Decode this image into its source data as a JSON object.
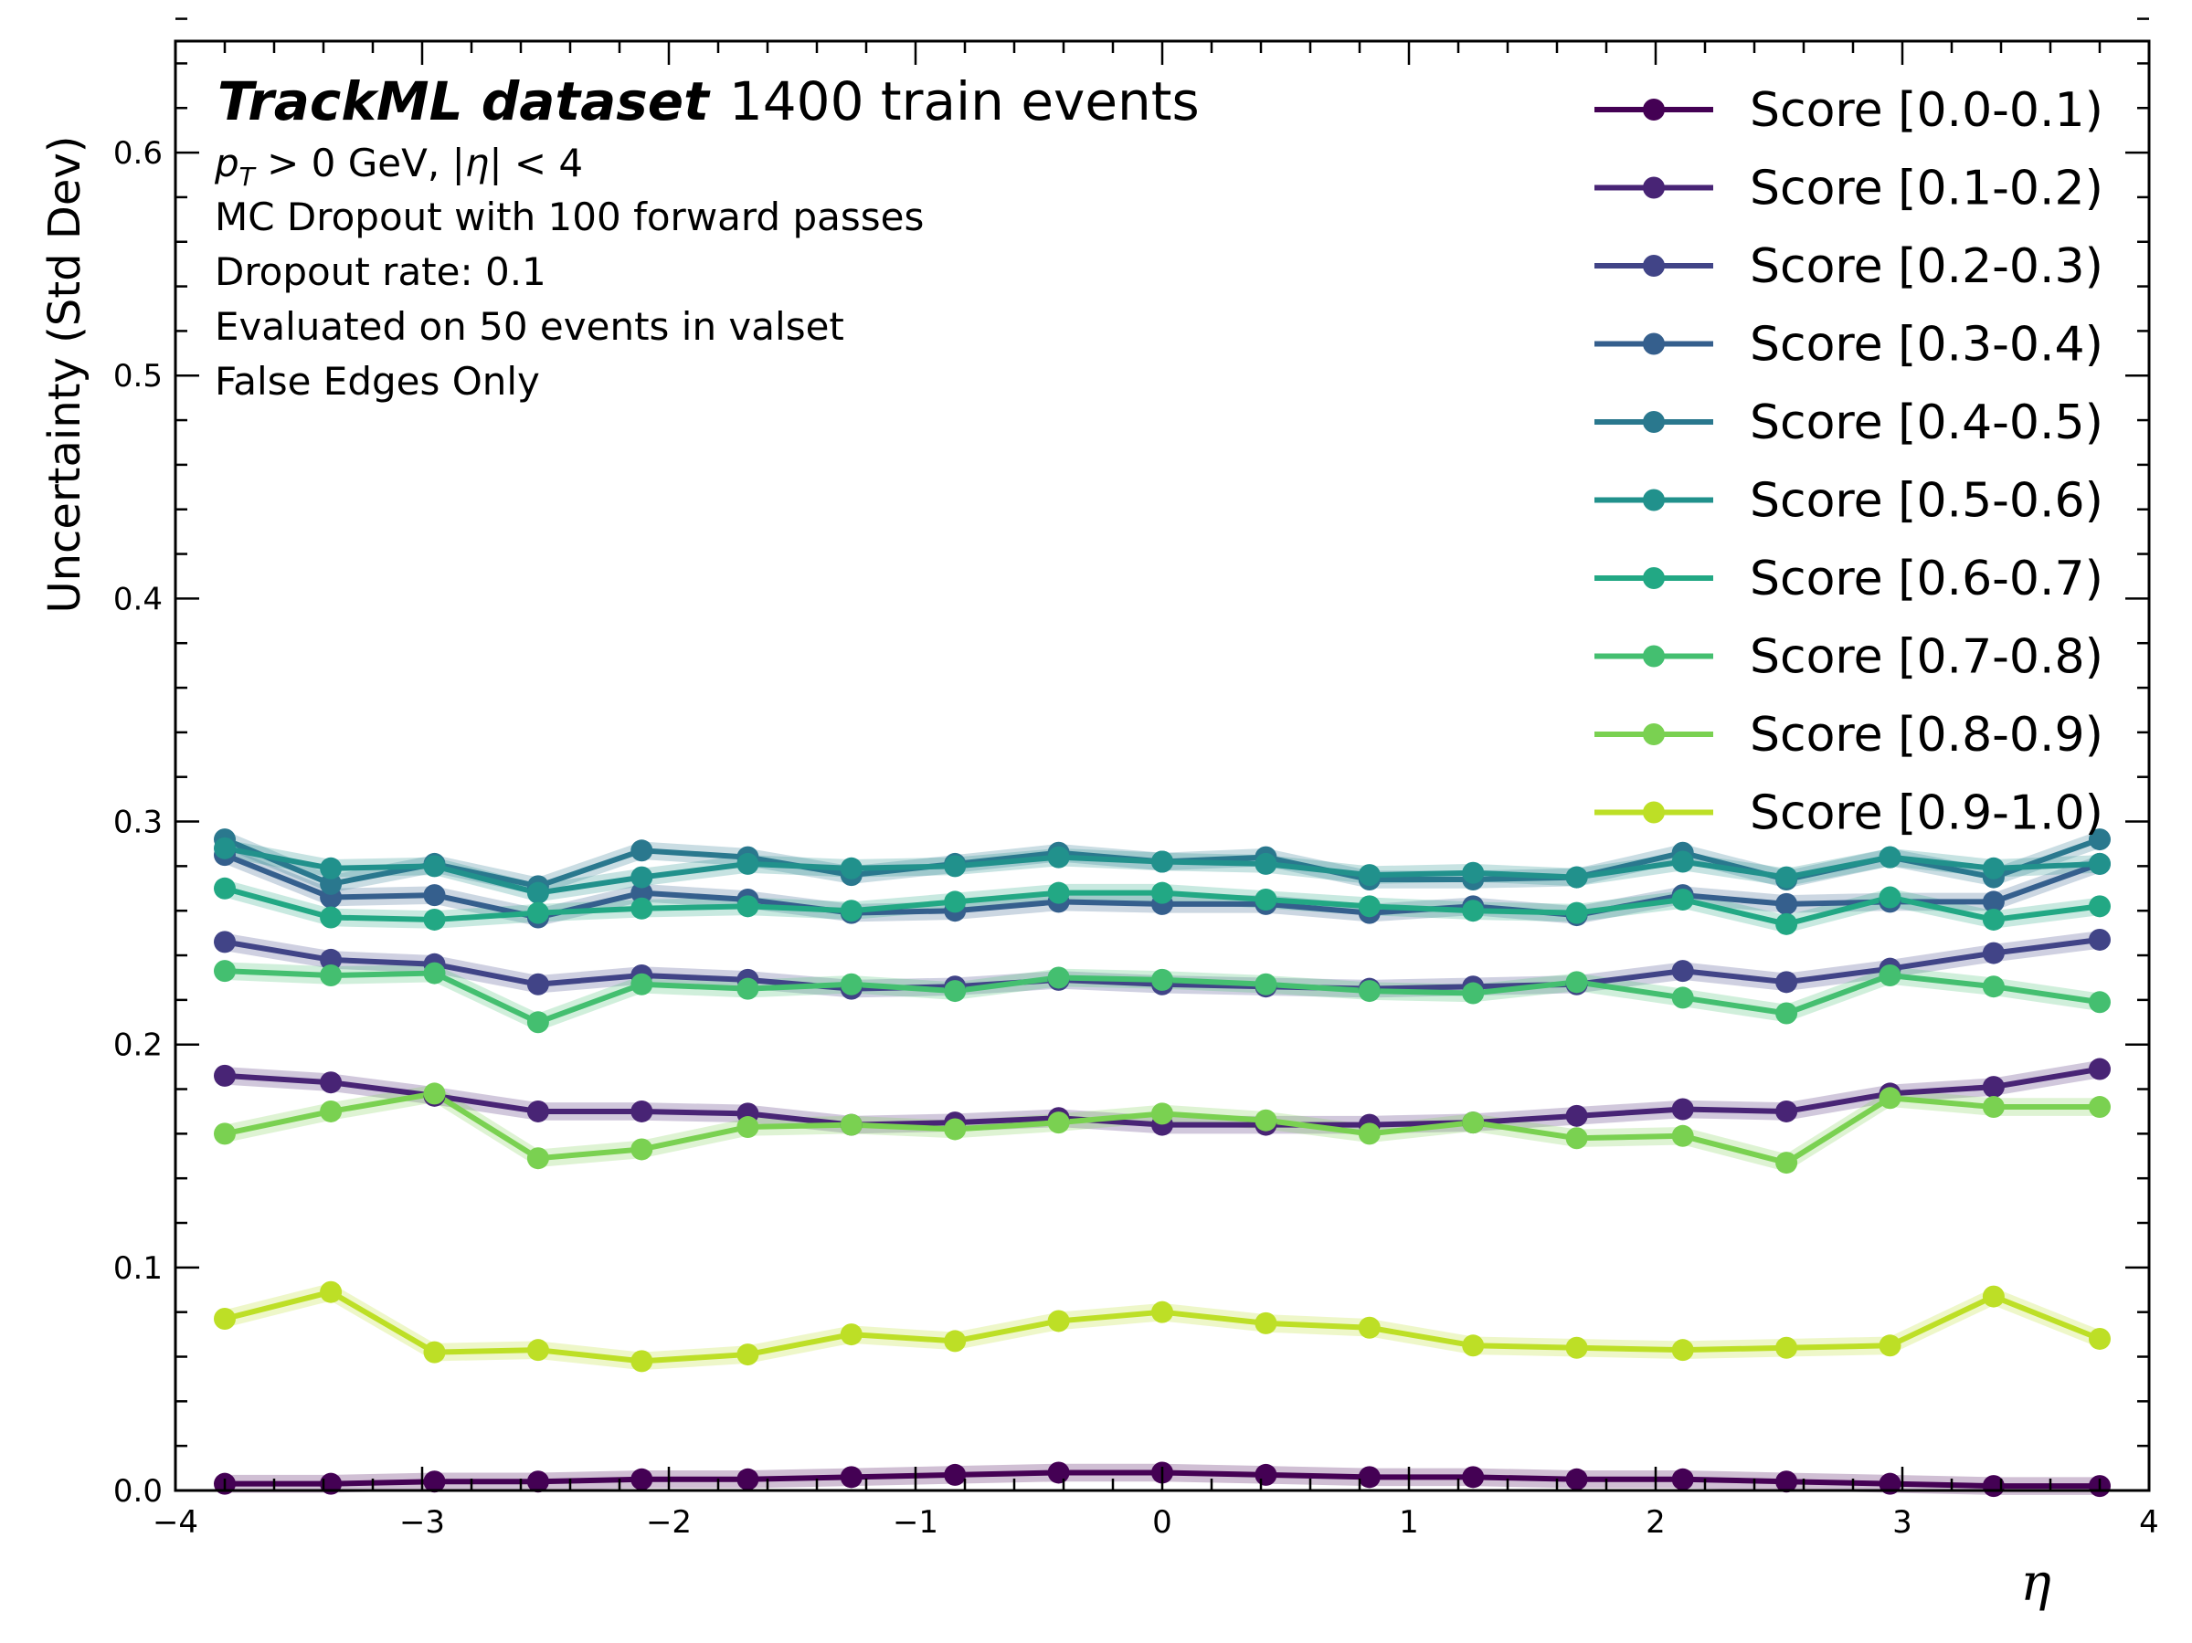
{
  "chart_data": {
    "type": "line",
    "title": "TrackML dataset",
    "subtitle": "1400 train events",
    "annotations": [
      "p_T > 0 GeV, |η| < 4",
      "MC Dropout with 100 forward passes",
      "Dropout rate: 0.1",
      "Evaluated on 50 events in valset",
      "False Edges Only"
    ],
    "annotation_first": {
      "p": "p",
      "T": "T",
      "rest1": " > 0 GeV, |",
      "eta": "η",
      "rest2": "| < 4"
    },
    "xlabel": "η",
    "ylabel": "Uncertainty (Std Dev)",
    "xlim": [
      -4,
      4
    ],
    "ylim": [
      0,
      0.65
    ],
    "x_ticks": [
      -4,
      -3,
      -2,
      -1,
      0,
      1,
      2,
      3,
      4
    ],
    "x_tick_labels": [
      "−4",
      "−3",
      "−2",
      "−1",
      "0",
      "1",
      "2",
      "3",
      "4"
    ],
    "y_ticks": [
      0.0,
      0.1,
      0.2,
      0.3,
      0.4,
      0.5,
      0.6
    ],
    "y_tick_labels": [
      "0.0",
      "0.1",
      "0.2",
      "0.3",
      "0.4",
      "0.5",
      "0.6"
    ],
    "grid": false,
    "legend_position": "top-right",
    "x": [
      -3.8,
      -3.37,
      -2.95,
      -2.53,
      -2.11,
      -1.68,
      -1.26,
      -0.84,
      -0.42,
      0.0,
      0.42,
      0.84,
      1.26,
      1.68,
      2.11,
      2.53,
      2.95,
      3.37,
      3.8
    ],
    "series": [
      {
        "name": "Score [0.0-0.1)",
        "color": "#440154",
        "values": [
          0.003,
          0.003,
          0.004,
          0.004,
          0.005,
          0.005,
          0.006,
          0.007,
          0.008,
          0.008,
          0.007,
          0.006,
          0.006,
          0.005,
          0.005,
          0.004,
          0.003,
          0.002,
          0.002
        ]
      },
      {
        "name": "Score [0.1-0.2)",
        "color": "#482475",
        "values": [
          0.186,
          0.183,
          0.177,
          0.17,
          0.17,
          0.169,
          0.164,
          0.165,
          0.167,
          0.164,
          0.164,
          0.164,
          0.165,
          0.168,
          0.171,
          0.17,
          0.178,
          0.181,
          0.189
        ]
      },
      {
        "name": "Score [0.2-0.3)",
        "color": "#414487",
        "values": [
          0.246,
          0.238,
          0.236,
          0.227,
          0.231,
          0.229,
          0.225,
          0.226,
          0.229,
          0.227,
          0.226,
          0.225,
          0.226,
          0.227,
          0.233,
          0.228,
          0.234,
          0.241,
          0.247
        ]
      },
      {
        "name": "Score [0.3-0.4)",
        "color": "#355f8d",
        "values": [
          0.285,
          0.266,
          0.267,
          0.257,
          0.268,
          0.265,
          0.259,
          0.26,
          0.264,
          0.263,
          0.263,
          0.259,
          0.262,
          0.258,
          0.267,
          0.263,
          0.264,
          0.264,
          0.281
        ]
      },
      {
        "name": "Score [0.4-0.5)",
        "color": "#2a788e",
        "values": [
          0.292,
          0.272,
          0.281,
          0.271,
          0.287,
          0.284,
          0.276,
          0.281,
          0.286,
          0.282,
          0.284,
          0.274,
          0.274,
          0.275,
          0.286,
          0.274,
          0.284,
          0.275,
          0.292
        ]
      },
      {
        "name": "Score [0.5-0.6)",
        "color": "#21918c",
        "values": [
          0.288,
          0.279,
          0.28,
          0.268,
          0.275,
          0.281,
          0.279,
          0.28,
          0.284,
          0.282,
          0.281,
          0.276,
          0.277,
          0.275,
          0.282,
          0.275,
          0.284,
          0.279,
          0.281
        ]
      },
      {
        "name": "Score [0.6-0.7)",
        "color": "#22a884",
        "values": [
          0.27,
          0.257,
          0.256,
          0.259,
          0.261,
          0.262,
          0.26,
          0.264,
          0.268,
          0.268,
          0.265,
          0.262,
          0.26,
          0.259,
          0.265,
          0.254,
          0.266,
          0.256,
          0.262
        ]
      },
      {
        "name": "Score [0.7-0.8)",
        "color": "#44bf70",
        "values": [
          0.233,
          0.231,
          0.232,
          0.21,
          0.227,
          0.225,
          0.227,
          0.224,
          0.23,
          0.229,
          0.227,
          0.224,
          0.223,
          0.228,
          0.221,
          0.214,
          0.231,
          0.226,
          0.219
        ]
      },
      {
        "name": "Score [0.8-0.9)",
        "color": "#7ad151",
        "values": [
          0.16,
          0.17,
          0.178,
          0.149,
          0.153,
          0.163,
          0.164,
          0.162,
          0.165,
          0.169,
          0.166,
          0.16,
          0.165,
          0.158,
          0.159,
          0.147,
          0.176,
          0.172,
          0.172
        ]
      },
      {
        "name": "Score [0.9-1.0)",
        "color": "#bddf26",
        "values": [
          0.077,
          0.089,
          0.062,
          0.063,
          0.058,
          0.061,
          0.07,
          0.067,
          0.076,
          0.08,
          0.075,
          0.073,
          0.065,
          0.064,
          0.063,
          0.064,
          0.065,
          0.087,
          0.068
        ]
      }
    ]
  }
}
